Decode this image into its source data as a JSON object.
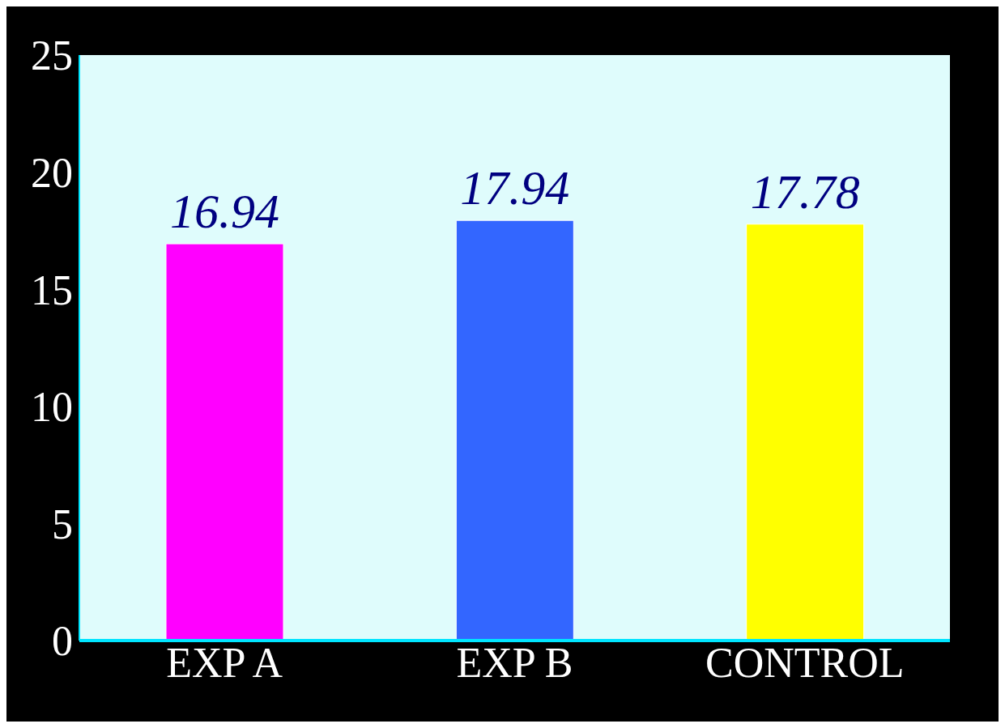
{
  "chart_data": {
    "type": "bar",
    "categories": [
      "EXP A",
      "EXP B",
      "CONTROL"
    ],
    "values": [
      16.94,
      17.94,
      17.78
    ],
    "colors": [
      "#ff00ff",
      "#3366ff",
      "#ffff00"
    ],
    "ylim": [
      0,
      25
    ],
    "yticks": [
      0,
      5,
      10,
      15,
      20,
      25
    ],
    "grid": false,
    "data_labels": true
  }
}
